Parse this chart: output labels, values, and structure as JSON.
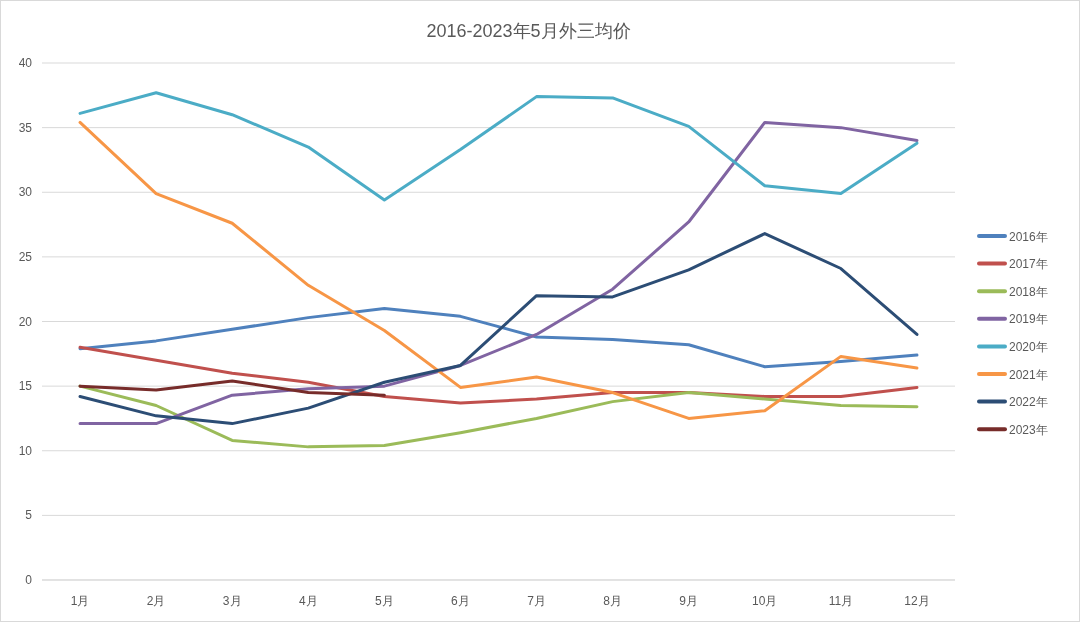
{
  "chart_data": {
    "type": "line",
    "title": "2016-2023年5月外三均价",
    "categories": [
      "1月",
      "2月",
      "3月",
      "4月",
      "5月",
      "6月",
      "7月",
      "8月",
      "9月",
      "10月",
      "11月",
      "12月"
    ],
    "ylim": [
      0,
      40
    ],
    "yticks": [
      0,
      5,
      10,
      15,
      20,
      25,
      30,
      35,
      40
    ],
    "grid": "y",
    "legend": "right",
    "marker": "none",
    "line_style": "solid",
    "series": [
      {
        "name": "2016年",
        "color": "#4f81bd",
        "values": [
          17.9,
          18.5,
          19.4,
          20.3,
          21.0,
          20.4,
          18.8,
          18.6,
          18.2,
          16.5,
          16.9,
          17.4
        ]
      },
      {
        "name": "2017年",
        "color": "#c0504d",
        "values": [
          18.0,
          17.0,
          16.0,
          15.3,
          14.2,
          13.7,
          14.0,
          14.5,
          14.5,
          14.2,
          14.2,
          14.9
        ]
      },
      {
        "name": "2018年",
        "color": "#9bbb59",
        "values": [
          15.0,
          13.5,
          10.8,
          10.3,
          10.4,
          11.4,
          12.5,
          13.8,
          14.5,
          14.0,
          13.5,
          13.4
        ]
      },
      {
        "name": "2019年",
        "color": "#8064a2",
        "values": [
          12.1,
          12.1,
          14.3,
          14.8,
          15.0,
          16.6,
          19.0,
          22.5,
          27.7,
          35.4,
          35.0,
          34.0
        ]
      },
      {
        "name": "2020年",
        "color": "#4bacc6",
        "values": [
          36.1,
          37.7,
          36.0,
          33.5,
          29.4,
          33.3,
          37.4,
          37.3,
          35.1,
          30.5,
          29.9,
          33.8
        ]
      },
      {
        "name": "2021年",
        "color": "#f79646",
        "values": [
          35.4,
          29.9,
          27.6,
          22.8,
          19.3,
          14.9,
          15.7,
          14.5,
          12.5,
          13.1,
          17.3,
          16.4
        ]
      },
      {
        "name": "2022年",
        "color": "#2c4d75",
        "values": [
          14.2,
          12.7,
          12.1,
          13.3,
          15.3,
          16.6,
          22.0,
          21.9,
          24.0,
          26.8,
          24.1,
          19.0
        ]
      },
      {
        "name": "2023年",
        "color": "#772c2a",
        "values": [
          15.0,
          14.7,
          15.4,
          14.5,
          14.3,
          null,
          null,
          null,
          null,
          null,
          null,
          null
        ]
      }
    ]
  }
}
